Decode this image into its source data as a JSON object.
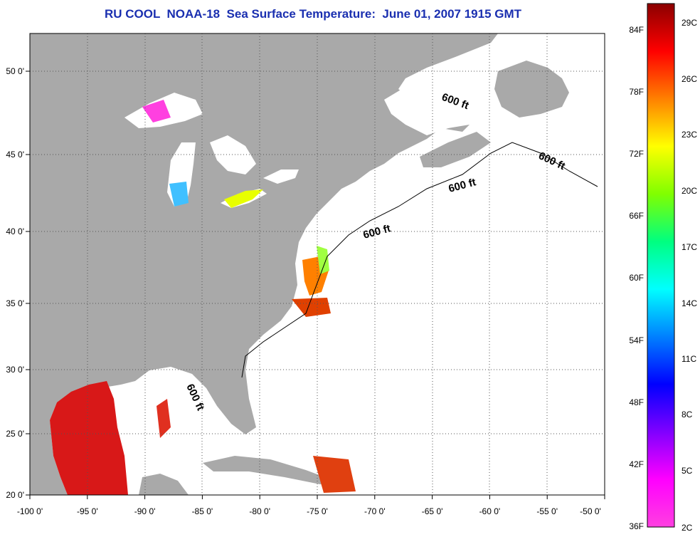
{
  "title": "RU COOL  NOAA-18  Sea Surface Temperature:  June 01, 2007 1915 GMT",
  "map": {
    "lon_range": [
      -100,
      -50
    ],
    "lat_range": [
      20,
      52.5
    ],
    "lon_ticks": [
      "-100 0'",
      "-95 0'",
      "-90 0'",
      "-85 0'",
      "-80 0'",
      "-75 0'",
      "-70 0'",
      "-65 0'",
      "-60 0'",
      "-55 0'",
      "-50 0'"
    ],
    "lat_ticks": [
      "20 0'",
      "25 0'",
      "30 0'",
      "35 0'",
      "40 0'",
      "45 0'",
      "50 0'"
    ],
    "isobath_label": "600 ft",
    "colors": {
      "land": "#a9a9a9",
      "water": "#ffffff",
      "title": "#1a2fb0"
    }
  },
  "colorbar": {
    "f_labels": [
      "84F",
      "78F",
      "72F",
      "66F",
      "60F",
      "54F",
      "48F",
      "42F",
      "36F"
    ],
    "c_labels": [
      "29C",
      "26C",
      "23C",
      "20C",
      "17C",
      "14C",
      "11C",
      "8C",
      "5C",
      "2C"
    ],
    "gradient_stops": [
      "#8b0000",
      "#ff0000",
      "#ff8000",
      "#ffff00",
      "#80ff00",
      "#00ff80",
      "#00ffff",
      "#0080ff",
      "#0000ff",
      "#8000ff",
      "#ff00ff",
      "#ff40e0"
    ]
  }
}
